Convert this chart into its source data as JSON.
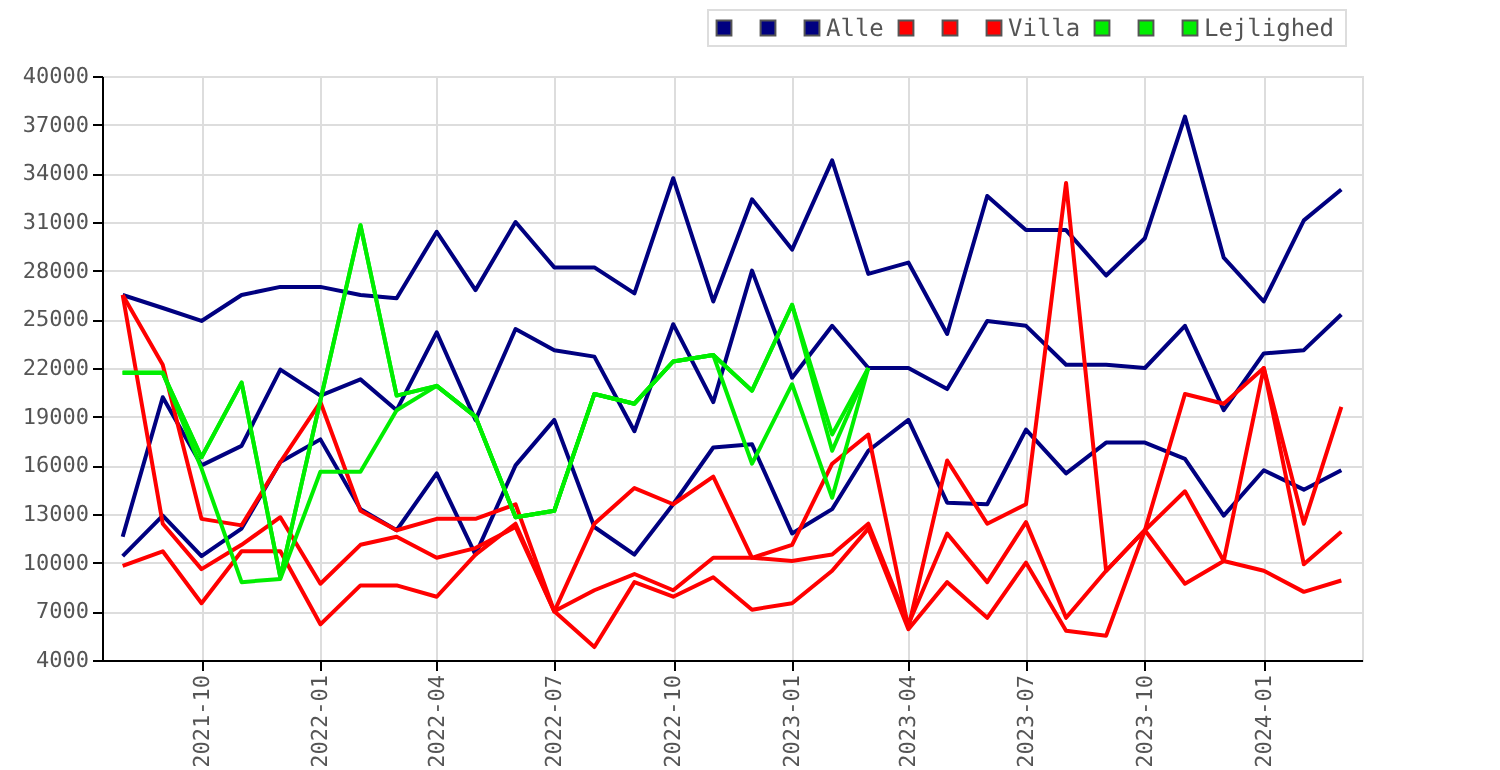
{
  "chart_data": {
    "type": "line",
    "x": [
      "2021-08",
      "2021-09",
      "2021-10",
      "2021-11",
      "2021-12",
      "2022-01",
      "2022-02",
      "2022-03",
      "2022-04",
      "2022-05",
      "2022-06",
      "2022-07",
      "2022-08",
      "2022-09",
      "2022-10",
      "2022-11",
      "2022-12",
      "2023-01",
      "2023-02",
      "2023-03",
      "2023-04",
      "2023-05",
      "2023-06",
      "2023-07",
      "2023-08",
      "2023-09",
      "2023-10",
      "2023-11",
      "2023-12",
      "2024-01",
      "2024-02",
      "2024-03"
    ],
    "xlim": [
      "2021-07-16",
      "2024-03-17"
    ],
    "xticks": [
      "2021-10",
      "2022-01",
      "2022-04",
      "2022-07",
      "2022-10",
      "2023-01",
      "2023-04",
      "2023-07",
      "2023-10",
      "2024-01"
    ],
    "ylim": [
      4000,
      40000
    ],
    "yticks": [
      4000,
      7000,
      10000,
      13000,
      16000,
      19000,
      22000,
      25000,
      28000,
      31000,
      34000,
      37000,
      40000
    ],
    "grid": true,
    "legend": "top right",
    "line_style": "solid",
    "marker": "none",
    "series": [
      {
        "color": "#000080",
        "values": [
          26500,
          25700,
          24900,
          26500,
          27000,
          27000,
          26500,
          26300,
          30400,
          26800,
          31000,
          28200,
          28200,
          26600,
          33700,
          26100,
          32400,
          29300,
          34800,
          27800,
          28500,
          24100,
          32600,
          30500,
          30500,
          27700,
          30000,
          37500,
          28800,
          26100,
          31100,
          33000
        ]
      },
      {
        "color": "#000080",
        "values": [
          11600,
          20200,
          16000,
          17200,
          21900,
          20300,
          21300,
          19400,
          24200,
          18800,
          24400,
          23100,
          22700,
          18100,
          24700,
          19900,
          28000,
          21400,
          24600,
          22000,
          22000,
          20700,
          24900,
          24600,
          22200,
          22200,
          22000,
          24600,
          19400,
          22900,
          23100,
          25300
        ]
      },
      {
        "name": "Alle",
        "color": "#000080",
        "values": [
          10400,
          12900,
          10400,
          12100,
          16200,
          17600,
          13300,
          12000,
          15500,
          10500,
          16000,
          18800,
          12200,
          10500,
          13600,
          17100,
          17300,
          11800,
          13300,
          16900,
          18800,
          13700,
          13600,
          18200,
          15500,
          17400,
          17400,
          16400,
          12900,
          15700,
          14500,
          15700
        ]
      },
      {
        "color": "#ff0000",
        "values": [
          26500,
          22200,
          12700,
          12300,
          16200,
          19900,
          13200,
          12000,
          12700,
          12700,
          13600,
          7000,
          12400,
          14600,
          13600,
          15300,
          10300,
          11100,
          16100,
          17900,
          6000,
          16300,
          12400,
          13600,
          33400,
          9500,
          12000,
          20400,
          19800,
          22000,
          12400,
          19600
        ]
      },
      {
        "color": "#ff0000",
        "values": [
          26500,
          12400,
          9600,
          11100,
          12800,
          8700,
          11100,
          11600,
          10300,
          10900,
          12200,
          7000,
          8300,
          9300,
          8300,
          10300,
          10300,
          10100,
          10500,
          12400,
          6200,
          11800,
          8800,
          12500,
          6600,
          9500,
          12000,
          14400,
          10100,
          22000,
          9900,
          11900
        ]
      },
      {
        "name": "Villa",
        "color": "#ff0000",
        "values": [
          9800,
          10700,
          7500,
          10700,
          10700,
          6200,
          8600,
          8600,
          7900,
          10500,
          12400,
          7000,
          4800,
          8800,
          7900,
          9100,
          7100,
          7500,
          9500,
          12100,
          5900,
          8800,
          6600,
          10000,
          5800,
          5500,
          12000,
          8700,
          10100,
          9500,
          8200,
          8900
        ]
      },
      {
        "color": "#00ee00",
        "values": [
          21700,
          21700,
          16500,
          21100,
          9100,
          20000,
          30800,
          20300,
          20900,
          19000,
          12800,
          13200,
          20400,
          19800,
          22400,
          22800,
          20600,
          25900,
          17900,
          22000,
          null,
          null,
          null,
          null,
          null,
          null,
          null,
          null,
          null,
          null,
          null,
          null
        ]
      },
      {
        "color": "#00ee00",
        "values": [
          21700,
          21700,
          15800,
          8800,
          9000,
          15600,
          15600,
          19400,
          20900,
          19000,
          12800,
          13200,
          20400,
          19800,
          22400,
          22800,
          16100,
          21000,
          14000,
          22000,
          null,
          null,
          null,
          null,
          null,
          null,
          null,
          null,
          null,
          null,
          null,
          null
        ]
      },
      {
        "name": "Lejlighed",
        "color": "#00ee00",
        "values": [
          21700,
          21700,
          16500,
          21100,
          9100,
          20000,
          30800,
          20300,
          20900,
          19000,
          12800,
          13200,
          20400,
          19800,
          22400,
          22800,
          20600,
          25900,
          16900,
          22000,
          null,
          null,
          null,
          null,
          null,
          null,
          null,
          null,
          null,
          null,
          null,
          null
        ]
      }
    ]
  }
}
